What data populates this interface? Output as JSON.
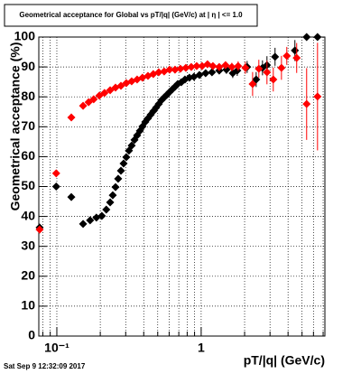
{
  "chart_data": {
    "type": "scatter",
    "title": "Geometrical acceptance for Global vs pT/|q| (GeV/c) at | η | <= 1.0",
    "x_label": "pT/|q| (GeV/c)",
    "y_label": "Geometrical acceptance (%)",
    "footer": "Sat Sep  9 12:32:09 2017",
    "log_x": true,
    "grid": true,
    "xlim": [
      0.075,
      7.2
    ],
    "ylim": [
      0,
      100
    ],
    "xticks": [
      {
        "value": 0.1,
        "label": "10⁻¹"
      },
      1
    ],
    "xminor_ticks": [
      0.08,
      0.09,
      0.2,
      0.3,
      0.4,
      0.5,
      0.6,
      0.7,
      0.8,
      0.9,
      2,
      3,
      4,
      5,
      6,
      7
    ],
    "yticks": [
      0,
      10,
      20,
      30,
      40,
      50,
      60,
      70,
      80,
      90,
      100
    ],
    "series": [
      {
        "name": "black",
        "color": "#000000",
        "x": [
          0.076,
          0.099,
          0.126,
          0.152,
          0.17,
          0.188,
          0.205,
          0.22,
          0.234,
          0.244,
          0.255,
          0.266,
          0.278,
          0.29,
          0.303,
          0.316,
          0.33,
          0.345,
          0.36,
          0.376,
          0.392,
          0.41,
          0.428,
          0.447,
          0.466,
          0.487,
          0.508,
          0.531,
          0.554,
          0.579,
          0.604,
          0.631,
          0.659,
          0.688,
          0.729,
          0.772,
          0.829,
          0.891,
          0.972,
          1.074,
          1.188,
          1.334,
          1.496,
          1.655,
          1.778,
          2.083,
          2.405,
          2.66,
          2.857,
          3.25,
          4.46,
          5.38,
          6.4
        ],
        "values": [
          36.3,
          50,
          46.5,
          37.5,
          38.7,
          39.6,
          40.2,
          42.3,
          44.7,
          47.1,
          49.8,
          52.6,
          55.3,
          57.7,
          59.8,
          62,
          63.7,
          65.6,
          67.1,
          68.6,
          70.1,
          71.6,
          72.8,
          74,
          75.2,
          76.4,
          77.6,
          78.9,
          79.8,
          80.7,
          81.6,
          82.5,
          83.4,
          84.3,
          84.9,
          85.8,
          86.4,
          86.7,
          87.3,
          87.9,
          88.2,
          88.8,
          89.1,
          87.9,
          88.8,
          90,
          85.8,
          89.7,
          90.6,
          93.4,
          95.5,
          100,
          100
        ],
        "errors": [
          1,
          1,
          1,
          0.8,
          0.8,
          0.8,
          0.8,
          0.8,
          0.8,
          0.8,
          0.8,
          0.8,
          0.8,
          0.8,
          0.8,
          0.8,
          0.8,
          0.8,
          0.8,
          0.8,
          0.8,
          0.8,
          0.8,
          0.8,
          0.8,
          0.8,
          0.8,
          0.8,
          0.8,
          0.8,
          0.8,
          0.8,
          0.8,
          0.8,
          0.8,
          1,
          1,
          1,
          1,
          1,
          1,
          1.2,
          1.4,
          1.6,
          1.8,
          2,
          2.5,
          2.5,
          3,
          3,
          3.5,
          0.1,
          0.1
        ]
      },
      {
        "name": "red",
        "color": "#ff0000",
        "x": [
          0.076,
          0.099,
          0.126,
          0.152,
          0.166,
          0.18,
          0.197,
          0.214,
          0.234,
          0.255,
          0.278,
          0.303,
          0.33,
          0.36,
          0.392,
          0.428,
          0.466,
          0.508,
          0.554,
          0.604,
          0.659,
          0.718,
          0.783,
          0.854,
          0.931,
          1.015,
          1.106,
          1.206,
          1.334,
          1.475,
          1.631,
          1.804,
          2.024,
          2.272,
          2.51,
          2.857,
          3.16,
          3.6,
          3.92,
          4.59,
          5.38,
          6.4
        ],
        "values": [
          35.6,
          54.4,
          73.1,
          77,
          78.2,
          79.2,
          80.4,
          81.3,
          82.2,
          83.1,
          83.7,
          84.6,
          85.2,
          85.8,
          86.4,
          87,
          87.6,
          88.2,
          88.5,
          89.1,
          89.1,
          89.4,
          89.7,
          90,
          90.3,
          90.3,
          90.9,
          90.3,
          90,
          90.6,
          90,
          90.3,
          89.7,
          84.3,
          89.4,
          88.2,
          85.8,
          89.7,
          93.7,
          93,
          77.6,
          80.1
        ],
        "errors": [
          1,
          1,
          1,
          0.8,
          0.8,
          0.8,
          0.8,
          0.8,
          0.8,
          0.8,
          0.8,
          0.8,
          0.8,
          0.8,
          0.8,
          0.8,
          0.8,
          0.8,
          0.8,
          0.8,
          0.8,
          0.8,
          0.8,
          0.8,
          0.8,
          0.8,
          1,
          1,
          1,
          1.2,
          1.4,
          1.6,
          2,
          4,
          3,
          4,
          4,
          4,
          3,
          5,
          12,
          18
        ]
      }
    ]
  }
}
